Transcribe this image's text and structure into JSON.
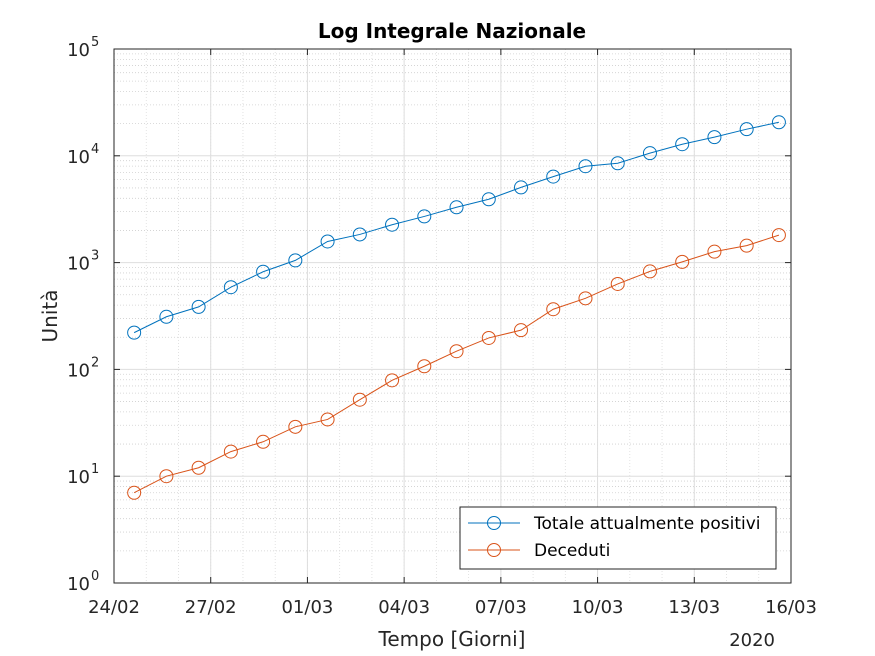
{
  "chart_data": {
    "type": "line",
    "title": "Log Integrale Nazionale",
    "xlabel": "Tempo [Giorni]",
    "ylabel": "Unità",
    "year_label": "2020",
    "yscale": "log",
    "ylim": [
      1,
      100000
    ],
    "xlim": [
      "2020-02-24",
      "2020-03-16"
    ],
    "grid": true,
    "legend_position": "bottom-right",
    "x_ticks": [
      "24/02",
      "27/02",
      "01/03",
      "04/03",
      "07/03",
      "10/03",
      "13/03",
      "16/03"
    ],
    "x_tick_dates": [
      "2020-02-24",
      "2020-02-27",
      "2020-03-01",
      "2020-03-04",
      "2020-03-07",
      "2020-03-10",
      "2020-03-13",
      "2020-03-16"
    ],
    "y_ticks": [
      {
        "value": 1,
        "base": "10",
        "exp": "0"
      },
      {
        "value": 10,
        "base": "10",
        "exp": "1"
      },
      {
        "value": 100,
        "base": "10",
        "exp": "2"
      },
      {
        "value": 1000,
        "base": "10",
        "exp": "3"
      },
      {
        "value": 10000,
        "base": "10",
        "exp": "4"
      },
      {
        "value": 100000,
        "base": "10",
        "exp": "5"
      }
    ],
    "x": [
      "2020-02-24T15:00",
      "2020-02-25T15:00",
      "2020-02-26T15:00",
      "2020-02-27T15:00",
      "2020-02-28T15:00",
      "2020-02-29T15:00",
      "2020-03-01T15:00",
      "2020-03-02T15:00",
      "2020-03-03T15:00",
      "2020-03-04T15:00",
      "2020-03-05T15:00",
      "2020-03-06T15:00",
      "2020-03-07T15:00",
      "2020-03-08T15:00",
      "2020-03-09T15:00",
      "2020-03-10T15:00",
      "2020-03-11T15:00",
      "2020-03-12T15:00",
      "2020-03-13T15:00",
      "2020-03-14T15:00",
      "2020-03-15T15:00"
    ],
    "series": [
      {
        "name": "Totale attualmente positivi",
        "color": "#0072BD",
        "values": [
          221,
          311,
          385,
          588,
          821,
          1049,
          1577,
          1835,
          2263,
          2706,
          3296,
          3916,
          5061,
          6387,
          7985,
          8514,
          10590,
          12839,
          14955,
          17750,
          20603
        ]
      },
      {
        "name": "Deceduti",
        "color": "#D95319",
        "values": [
          7,
          10,
          12,
          17,
          21,
          29,
          34,
          52,
          79,
          107,
          148,
          197,
          233,
          366,
          463,
          631,
          827,
          1016,
          1266,
          1441,
          1809
        ]
      }
    ]
  }
}
